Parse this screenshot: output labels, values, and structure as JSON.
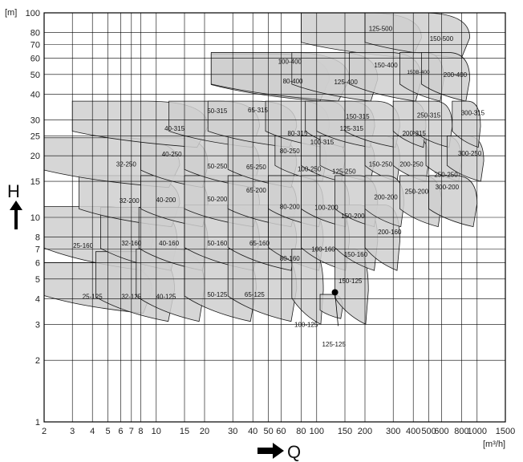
{
  "chart_data": {
    "type": "area",
    "x_scale": "log",
    "y_scale": "log",
    "xlim": [
      2,
      1500
    ],
    "ylim": [
      1,
      100
    ],
    "grid": true,
    "x_unit_label": "[m³/h]",
    "y_unit_label": "[m]",
    "x_axis_symbol": "Q",
    "y_axis_symbol": "H",
    "x_ticks": [
      {
        "v": 2,
        "t": "2"
      },
      {
        "v": 3,
        "t": "3"
      },
      {
        "v": 4,
        "t": "4"
      },
      {
        "v": 5,
        "t": "5"
      },
      {
        "v": 6,
        "t": "6"
      },
      {
        "v": 7,
        "t": "7"
      },
      {
        "v": 8,
        "t": "8"
      },
      {
        "v": 10,
        "t": "10"
      },
      {
        "v": 15,
        "t": "15"
      },
      {
        "v": 20,
        "t": "20"
      },
      {
        "v": 30,
        "t": "30"
      },
      {
        "v": 40,
        "t": "40"
      },
      {
        "v": 50,
        "t": "50"
      },
      {
        "v": 60,
        "t": "60"
      },
      {
        "v": 80,
        "t": "80"
      },
      {
        "v": 100,
        "t": "100"
      },
      {
        "v": 150,
        "t": "150"
      },
      {
        "v": 200,
        "t": "200"
      },
      {
        "v": 300,
        "t": "300"
      },
      {
        "v": 400,
        "t": "400"
      },
      {
        "v": 500,
        "t": "500"
      },
      {
        "v": 600,
        "t": "600"
      },
      {
        "v": 800,
        "t": "800"
      },
      {
        "v": 1000,
        "t": "1000"
      },
      {
        "v": 1500,
        "t": "1500"
      }
    ],
    "y_ticks": [
      {
        "v": 1,
        "t": "1"
      },
      {
        "v": 2,
        "t": "2"
      },
      {
        "v": 3,
        "t": "3"
      },
      {
        "v": 4,
        "t": "4"
      },
      {
        "v": 5,
        "t": "5"
      },
      {
        "v": 6,
        "t": "6"
      },
      {
        "v": 7,
        "t": "7"
      },
      {
        "v": 8,
        "t": "8"
      },
      {
        "v": 10,
        "t": "10"
      },
      {
        "v": 15,
        "t": "15"
      },
      {
        "v": 20,
        "t": "20"
      },
      {
        "v": 25,
        "t": "25"
      },
      {
        "v": 30,
        "t": "30"
      },
      {
        "v": 40,
        "t": "40"
      },
      {
        "v": 50,
        "t": "50"
      },
      {
        "v": 60,
        "t": "60"
      },
      {
        "v": 70,
        "t": "70"
      },
      {
        "v": 80,
        "t": "80"
      },
      {
        "v": 100,
        "t": "100"
      }
    ],
    "series": [
      {
        "name": "25-125",
        "q": [
          2,
          9.4
        ],
        "h": [
          3.4,
          6.0
        ],
        "label_at": [
          4,
          4.1
        ]
      },
      {
        "name": "25-160",
        "q": [
          2,
          9.5
        ],
        "h": [
          5.5,
          11.3
        ],
        "label_at": [
          3.5,
          7.3
        ]
      },
      {
        "name": "32-125",
        "q": [
          4.2,
          13
        ],
        "h": [
          3.1,
          6.8
        ],
        "label_at": [
          7,
          4.1
        ]
      },
      {
        "name": "32-160",
        "q": [
          4.5,
          13.5
        ],
        "h": [
          5.5,
          11.2
        ],
        "label_at": [
          7,
          7.5
        ]
      },
      {
        "name": "32-200",
        "q": [
          3.3,
          14
        ],
        "h": [
          9,
          16
        ],
        "label_at": [
          6.8,
          12.1
        ]
      },
      {
        "name": "32-250",
        "q": [
          2,
          14
        ],
        "h": [
          14,
          24.5
        ],
        "label_at": [
          6.5,
          18.2
        ]
      },
      {
        "name": "40-125",
        "q": [
          7.5,
          20
        ],
        "h": [
          3.1,
          7.0
        ],
        "label_at": [
          11.5,
          4.1
        ]
      },
      {
        "name": "40-160",
        "q": [
          7.8,
          21
        ],
        "h": [
          5.5,
          11.2
        ],
        "label_at": [
          12,
          7.5
        ]
      },
      {
        "name": "40-200",
        "q": [
          8,
          21
        ],
        "h": [
          9,
          16
        ],
        "label_at": [
          11.5,
          12.2
        ]
      },
      {
        "name": "40-250",
        "q": [
          8,
          21
        ],
        "h": [
          14,
          24.5
        ],
        "label_at": [
          12.5,
          20.4
        ]
      },
      {
        "name": "40-315",
        "q": [
          3,
          21
        ],
        "h": [
          22,
          37
        ],
        "label_at": [
          13,
          27.3
        ]
      },
      {
        "name": "50-125",
        "q": [
          15,
          42
        ],
        "h": [
          3.1,
          7.0
        ],
        "label_at": [
          24,
          4.2
        ]
      },
      {
        "name": "50-160",
        "q": [
          15,
          44
        ],
        "h": [
          5.5,
          11.5
        ],
        "label_at": [
          24,
          7.5
        ]
      },
      {
        "name": "50-200",
        "q": [
          15,
          44
        ],
        "h": [
          9,
          16
        ],
        "label_at": [
          24,
          12.3
        ]
      },
      {
        "name": "50-250",
        "q": [
          15,
          44
        ],
        "h": [
          14,
          25
        ],
        "label_at": [
          24,
          17.8
        ]
      },
      {
        "name": "50-315",
        "q": [
          12,
          44
        ],
        "h": [
          22,
          37
        ],
        "label_at": [
          24,
          33.3
        ]
      },
      {
        "name": "65-125",
        "q": [
          28,
          75
        ],
        "h": [
          3.1,
          7.0
        ],
        "label_at": [
          41,
          4.2
        ]
      },
      {
        "name": "65-160",
        "q": [
          28,
          75
        ],
        "h": [
          5.5,
          11.5
        ],
        "label_at": [
          44,
          7.5
        ]
      },
      {
        "name": "65-200",
        "q": [
          28,
          75
        ],
        "h": [
          9,
          16
        ],
        "label_at": [
          42,
          13.6
        ]
      },
      {
        "name": "65-250",
        "q": [
          28,
          75
        ],
        "h": [
          14,
          25
        ],
        "label_at": [
          42,
          17.7
        ]
      },
      {
        "name": "65-315",
        "q": [
          21,
          75
        ],
        "h": [
          22,
          37
        ],
        "label_at": [
          43,
          33.5
        ]
      },
      {
        "name": "80-160",
        "q": [
          50,
          110
        ],
        "h": [
          5.5,
          11.5
        ],
        "label_at": [
          68,
          6.3
        ]
      },
      {
        "name": "80-200",
        "q": [
          50,
          110
        ],
        "h": [
          9,
          16
        ],
        "label_at": [
          68,
          11.3
        ]
      },
      {
        "name": "80-250",
        "q": [
          55,
          115
        ],
        "h": [
          15,
          25
        ],
        "label_at": [
          68,
          21.2
        ]
      },
      {
        "name": "80-315",
        "q": [
          48,
          120
        ],
        "h": [
          22,
          37
        ],
        "label_at": [
          76,
          25.8
        ]
      },
      {
        "name": "80-400",
        "q": [
          22,
          120
        ],
        "h": [
          37,
          63
        ],
        "label_at": [
          71,
          46.5
        ]
      },
      {
        "name": "100-125",
        "q": [
          70,
          110
        ],
        "h": [
          3.0,
          7.0
        ],
        "label_at": [
          86,
          3.0
        ]
      },
      {
        "name": "100-160",
        "q": [
          80,
          160
        ],
        "h": [
          5.5,
          11.5
        ],
        "label_at": [
          110,
          7.0
        ]
      },
      {
        "name": "100-200",
        "q": [
          80,
          160
        ],
        "h": [
          9,
          16
        ],
        "label_at": [
          115,
          11.2
        ]
      },
      {
        "name": "100-250",
        "q": [
          80,
          150
        ],
        "h": [
          15,
          25
        ],
        "label_at": [
          90,
          17.3
        ]
      },
      {
        "name": "100-315",
        "q": [
          85,
          155
        ],
        "h": [
          22,
          37
        ],
        "label_at": [
          108,
          23.4
        ]
      },
      {
        "name": "100-400",
        "q": [
          22,
          160
        ],
        "h": [
          37,
          64
        ],
        "label_at": [
          68,
          58
        ]
      },
      {
        "name": "125-125",
        "q": [
          105,
          145
        ],
        "h": [
          3.2,
          4.2
        ],
        "label_at": [
          128,
          2.4
        ]
      },
      {
        "name": "125-250",
        "q": [
          105,
          230
        ],
        "h": [
          15,
          25
        ],
        "label_at": [
          148,
          16.8
        ]
      },
      {
        "name": "125-315",
        "q": [
          100,
          230
        ],
        "h": [
          22,
          37
        ],
        "label_at": [
          165,
          27.3
        ]
      },
      {
        "name": "125-400",
        "q": [
          70,
          240
        ],
        "h": [
          37,
          64
        ],
        "label_at": [
          152,
          46
        ]
      },
      {
        "name": "125-500",
        "q": [
          80,
          450
        ],
        "h": [
          60,
          100
        ],
        "label_at": [
          250,
          84
        ]
      },
      {
        "name": "150-125",
        "q": [
          130,
          210
        ],
        "h": [
          3.0,
          7.0
        ],
        "label_at": [
          162,
          4.9
        ]
      },
      {
        "name": "150-160",
        "q": [
          130,
          240
        ],
        "h": [
          5.5,
          11.5
        ],
        "label_at": [
          175,
          6.6
        ]
      },
      {
        "name": "150-200",
        "q": [
          130,
          240
        ],
        "h": [
          9,
          16
        ],
        "label_at": [
          168,
          10.2
        ]
      },
      {
        "name": "150-250",
        "q": [
          200,
          330
        ],
        "h": [
          15,
          25
        ],
        "label_at": [
          250,
          18.2
        ]
      },
      {
        "name": "150-315",
        "q": [
          150,
          330
        ],
        "h": [
          22,
          37
        ],
        "label_at": [
          180,
          31.2
        ]
      },
      {
        "name": "150-400",
        "q": [
          160,
          450
        ],
        "h": [
          37,
          64
        ],
        "label_at": [
          270,
          55.7
        ]
      },
      {
        "name": "150-500",
        "q": [
          200,
          900
        ],
        "h": [
          60,
          100
        ],
        "label_at": [
          600,
          75
        ]
      },
      {
        "name": "150B-400",
        "q": [
          330,
          620
        ],
        "h": [
          37,
          64
        ],
        "label_at": [
          430,
          51.7
        ]
      },
      {
        "name": "200-160",
        "q": [
          200,
          330
        ],
        "h": [
          5.5,
          11.5
        ],
        "label_at": [
          285,
          8.5
        ]
      },
      {
        "name": "200-200",
        "q": [
          200,
          350
        ],
        "h": [
          9,
          16
        ],
        "label_at": [
          270,
          12.6
        ]
      },
      {
        "name": "200-250",
        "q": [
          300,
          500
        ],
        "h": [
          15,
          25
        ],
        "label_at": [
          390,
          18.2
        ]
      },
      {
        "name": "200-315",
        "q": [
          300,
          480
        ],
        "h": [
          22,
          37
        ],
        "label_at": [
          405,
          25.8
        ]
      },
      {
        "name": "200-400",
        "q": [
          450,
          900
        ],
        "h": [
          37,
          64
        ],
        "label_at": [
          730,
          49.8
        ]
      },
      {
        "name": "250-200",
        "q": [
          330,
          600
        ],
        "h": [
          9,
          16
        ],
        "label_at": [
          420,
          13.4
        ]
      },
      {
        "name": "250-250",
        "q": [
          480,
          800
        ],
        "h": [
          15,
          25
        ],
        "label_at": [
          640,
          16.2
        ]
      },
      {
        "name": "250-315",
        "q": [
          400,
          700
        ],
        "h": [
          22,
          37
        ],
        "label_at": [
          500,
          31.6
        ]
      },
      {
        "name": "300-200",
        "q": [
          500,
          1000
        ],
        "h": [
          9,
          16
        ],
        "label_at": [
          650,
          14.1
        ]
      },
      {
        "name": "300-250",
        "q": [
          650,
          1100
        ],
        "h": [
          15,
          25
        ],
        "label_at": [
          900,
          20.6
        ]
      },
      {
        "name": "300-315",
        "q": [
          700,
          1050
        ],
        "h": [
          22,
          37
        ],
        "label_at": [
          940,
          32.5
        ]
      }
    ],
    "marked_point": {
      "q": 130,
      "h": 4.3
    }
  }
}
